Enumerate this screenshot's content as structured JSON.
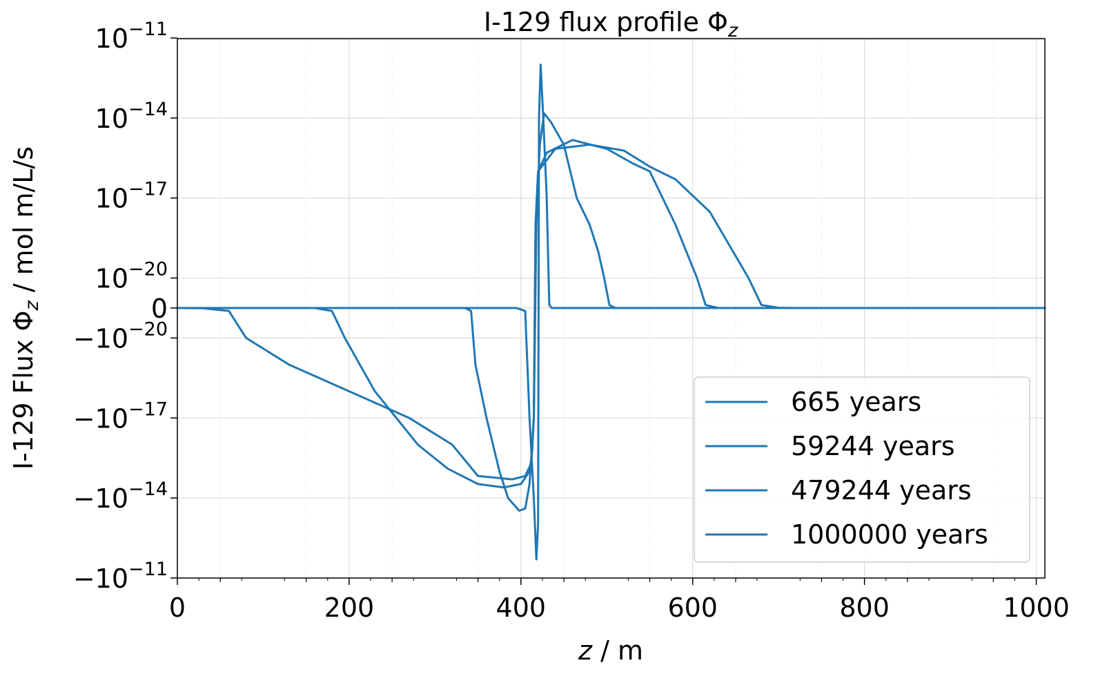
{
  "chart_data": {
    "type": "line",
    "title": "I-129 flux profile Φ",
    "title_sub": "z",
    "xlabel": "z",
    "xlabel_suffix": " / m",
    "ylabel": "I-129 Flux Φ",
    "ylabel_sub": "z",
    "ylabel_suffix": " / mol m/L/s",
    "xlim": [
      0,
      1010
    ],
    "yscale": "symlog",
    "linthresh": 1e-20,
    "ylim": [
      -1e-11,
      1e-11
    ],
    "grid": true,
    "legend_position": "lower-right",
    "series_color": "#1f77b4",
    "x_ticks": [
      {
        "value": 0,
        "label": "0"
      },
      {
        "value": 200,
        "label": "200"
      },
      {
        "value": 400,
        "label": "400"
      },
      {
        "value": 600,
        "label": "600"
      },
      {
        "value": 800,
        "label": "800"
      },
      {
        "value": 1000,
        "label": "1000"
      }
    ],
    "y_ticks": [
      {
        "value": 1e-11,
        "base": "10",
        "exp": "−11"
      },
      {
        "value": 1e-14,
        "base": "10",
        "exp": "−14"
      },
      {
        "value": 1e-17,
        "base": "10",
        "exp": "−17"
      },
      {
        "value": 1e-20,
        "base": "10",
        "exp": "−20"
      },
      {
        "value": 0,
        "base": "0",
        "exp": ""
      },
      {
        "value": -1e-20,
        "base": "−10",
        "exp": "−20"
      },
      {
        "value": -1e-17,
        "base": "−10",
        "exp": "−17"
      },
      {
        "value": -1e-14,
        "base": "−10",
        "exp": "−14"
      },
      {
        "value": -1e-11,
        "base": "−10",
        "exp": "−11"
      }
    ],
    "series": [
      {
        "name": "665 years",
        "points": [
          [
            0,
            0
          ],
          [
            395,
            0
          ],
          [
            405,
            -1e-21
          ],
          [
            410,
            -1e-17
          ],
          [
            415,
            -1e-14
          ],
          [
            418,
            -2e-12
          ],
          [
            420,
            -1e-13
          ],
          [
            421,
            1e-14
          ],
          [
            423,
            1e-12
          ],
          [
            426,
            1e-14
          ],
          [
            430,
            1e-17
          ],
          [
            433,
            1e-21
          ],
          [
            436,
            0
          ],
          [
            1010,
            0
          ]
        ]
      },
      {
        "name": "59244 years",
        "points": [
          [
            0,
            0
          ],
          [
            335,
            0
          ],
          [
            342,
            -1e-21
          ],
          [
            347,
            -1e-19
          ],
          [
            360,
            -1e-17
          ],
          [
            375,
            -1e-15
          ],
          [
            385,
            -1e-14
          ],
          [
            398,
            -3e-14
          ],
          [
            405,
            -2.5e-14
          ],
          [
            410,
            -3e-15
          ],
          [
            415,
            -1e-17
          ],
          [
            418,
            1e-18
          ],
          [
            422,
            1e-15
          ],
          [
            427,
            1.5e-14
          ],
          [
            435,
            7e-15
          ],
          [
            450,
            1e-15
          ],
          [
            465,
            1e-17
          ],
          [
            480,
            1e-18
          ],
          [
            490,
            1e-19
          ],
          [
            497,
            1e-20
          ],
          [
            503,
            1e-21
          ],
          [
            510,
            0
          ],
          [
            1010,
            0
          ]
        ]
      },
      {
        "name": "479244 years",
        "points": [
          [
            0,
            0
          ],
          [
            160,
            0
          ],
          [
            180,
            -1e-21
          ],
          [
            195,
            -1e-20
          ],
          [
            230,
            -1e-18
          ],
          [
            280,
            -1e-16
          ],
          [
            315,
            -8e-16
          ],
          [
            350,
            -3e-15
          ],
          [
            380,
            -4e-15
          ],
          [
            400,
            -3e-15
          ],
          [
            410,
            -1e-15
          ],
          [
            413,
            -2e-16
          ],
          [
            415,
            -1e-17
          ],
          [
            417,
            1e-18
          ],
          [
            420,
            1e-16
          ],
          [
            430,
            5e-16
          ],
          [
            460,
            1.5e-15
          ],
          [
            500,
            7e-16
          ],
          [
            530,
            2e-16
          ],
          [
            550,
            1e-16
          ],
          [
            580,
            1e-18
          ],
          [
            605,
            1e-20
          ],
          [
            615,
            1e-21
          ],
          [
            630,
            0
          ],
          [
            1010,
            0
          ]
        ]
      },
      {
        "name": "1000000 years",
        "points": [
          [
            0,
            0
          ],
          [
            30,
            -1e-22
          ],
          [
            60,
            -1e-21
          ],
          [
            80,
            -1e-20
          ],
          [
            130,
            -1e-19
          ],
          [
            200,
            -1e-18
          ],
          [
            270,
            -1e-17
          ],
          [
            320,
            -1e-16
          ],
          [
            350,
            -1.5e-15
          ],
          [
            390,
            -2e-15
          ],
          [
            405,
            -1.5e-15
          ],
          [
            412,
            -5e-16
          ],
          [
            415,
            -1e-17
          ],
          [
            417,
            1e-18
          ],
          [
            420,
            1e-16
          ],
          [
            440,
            7e-16
          ],
          [
            480,
            1e-15
          ],
          [
            520,
            6e-16
          ],
          [
            550,
            1.5e-16
          ],
          [
            580,
            5e-17
          ],
          [
            620,
            3e-18
          ],
          [
            665,
            1e-20
          ],
          [
            680,
            1e-21
          ],
          [
            700,
            1e-22
          ],
          [
            720,
            0
          ],
          [
            1010,
            0
          ]
        ]
      }
    ]
  }
}
